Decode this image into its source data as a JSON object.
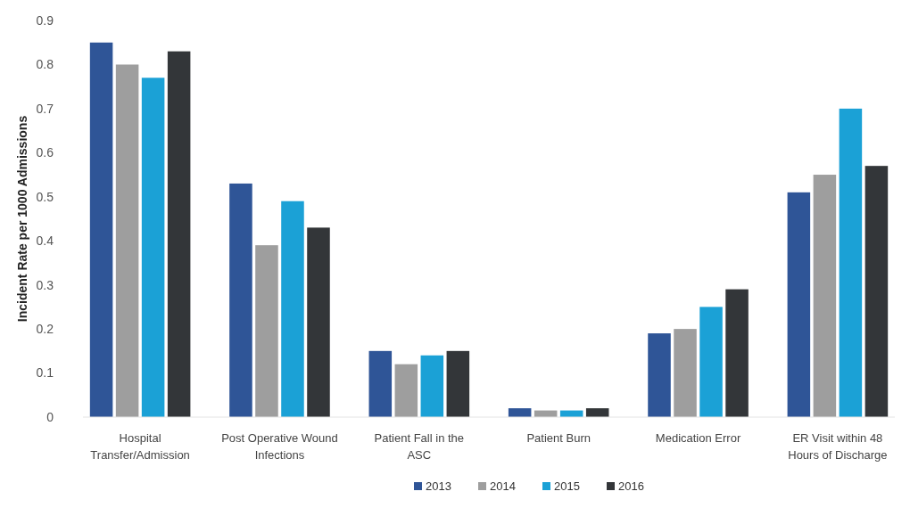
{
  "chart_data": {
    "type": "bar",
    "ylabel": "Incident Rate per 1000 Admissions",
    "categories": [
      "Hospital Transfer/Admission",
      "Post Operative Wound Infections",
      "Patient Fall in the ASC",
      "Patient Burn",
      "Medication Error",
      "ER Visit within 48 Hours of Discharge"
    ],
    "series": [
      {
        "name": "2013",
        "color": "#2f5597",
        "values": [
          0.85,
          0.53,
          0.15,
          0.02,
          0.19,
          0.51
        ]
      },
      {
        "name": "2014",
        "color": "#9e9e9e",
        "values": [
          0.8,
          0.39,
          0.12,
          0.015,
          0.2,
          0.55
        ]
      },
      {
        "name": "2015",
        "color": "#1ba1d6",
        "values": [
          0.77,
          0.49,
          0.14,
          0.015,
          0.25,
          0.7
        ]
      },
      {
        "name": "2016",
        "color": "#333639",
        "values": [
          0.83,
          0.43,
          0.15,
          0.02,
          0.29,
          0.57
        ]
      }
    ],
    "ylim": [
      0,
      0.9
    ],
    "yticks": [
      0,
      0.1,
      0.2,
      0.3,
      0.4,
      0.5,
      0.6,
      0.7,
      0.8,
      0.9
    ],
    "grid": false,
    "legend": "bottom"
  }
}
